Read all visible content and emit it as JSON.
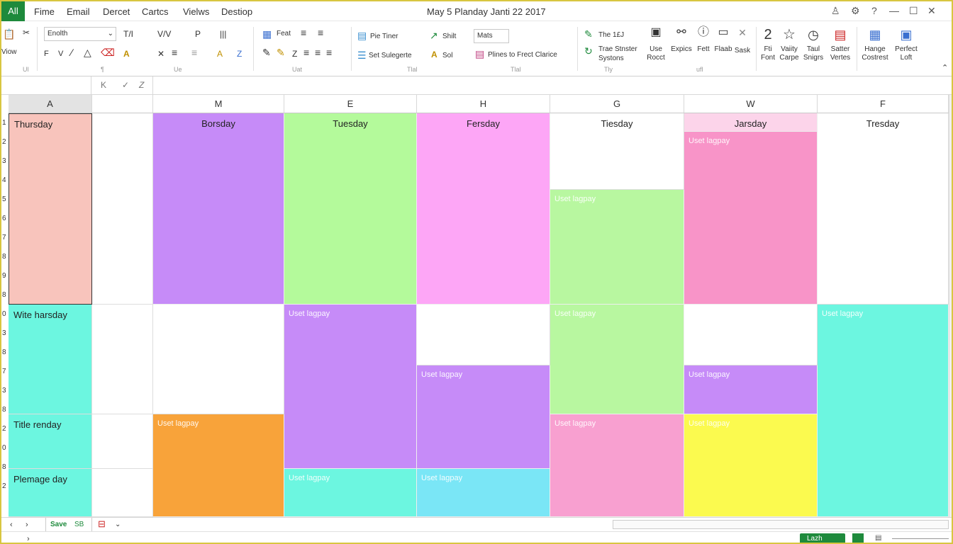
{
  "menubar": {
    "file_tab": "All",
    "items": [
      "Fime",
      "Email",
      "Dercet",
      "Cartcs",
      "Vielws",
      "Destiop"
    ],
    "title": "May 5 Planday  Janti 22 2017"
  },
  "ribbon": {
    "clipboard_label": "Viow",
    "font_name": "Enolth",
    "font_glyphs": [
      "T/I",
      "V/V",
      "P",
      "|||"
    ],
    "fmt_glyphs": [
      "F",
      "V",
      "Z",
      "A",
      "A",
      "Z"
    ],
    "group_labels": [
      "Ul",
      "¶",
      "Ue",
      "Uat",
      "Tlal",
      "Tly",
      "ufl"
    ],
    "feat_label": "Feat",
    "file_liner": "Pie Tiner",
    "set_categorte": "Set Sulegerte",
    "shift_label": "Shilt",
    "sol_label": "Sol",
    "mats_label": "Mats",
    "plines_label": "Plines to Frect Clarice",
    "the_label": "The 1£J",
    "trae_label": "Trae Stnster",
    "systons_label": "Systons",
    "big_buttons": [
      {
        "icon": "user",
        "l1": "Use",
        "l2": "Rocct"
      },
      {
        "icon": "link",
        "l1": "Expics",
        "l2": ""
      },
      {
        "icon": "info",
        "l1": "Fett",
        "l2": ""
      },
      {
        "icon": "window",
        "l1": "Flaab",
        "l2": ""
      },
      {
        "icon": "close",
        "l1": "Sask",
        "l2": ""
      }
    ],
    "right_buttons": [
      {
        "icon": "2",
        "l1": "Fti",
        "l2": "Font"
      },
      {
        "icon": "star",
        "l1": "Vaiity",
        "l2": "Carpe"
      },
      {
        "icon": "clock",
        "l1": "Taul",
        "l2": "Snigrs"
      },
      {
        "icon": "doc",
        "l1": "Satter",
        "l2": "Vertes"
      },
      {
        "icon": "grid",
        "l1": "Hange",
        "l2": "Costrest"
      },
      {
        "icon": "save",
        "l1": "Perfect",
        "l2": "Loft"
      }
    ]
  },
  "formula_bar": {
    "name_box": "",
    "cancel": "K",
    "enter": "✓",
    "fx": "Z",
    "value": ""
  },
  "columns": [
    "A",
    "",
    "M",
    "E",
    "H",
    "G",
    "W",
    "F"
  ],
  "day_headers": [
    "Thursday",
    "",
    "Borsday",
    "Tuesday",
    "Fersday",
    "Tiesday",
    "Jarsday",
    "Tresday"
  ],
  "row_numbers": [
    "1",
    "2",
    "3",
    "4",
    "5",
    "6",
    "7",
    "8",
    "9",
    "8",
    "0",
    "3",
    "8",
    "7",
    "3",
    "8",
    "2",
    "0",
    "8",
    "2"
  ],
  "row_labels": [
    "Wite harsday",
    "Title renday",
    "Plemage day"
  ],
  "event_label": "Uset lagpay",
  "colors": {
    "pink_light": "#f8c4bc",
    "purple": "#c68bf8",
    "green": "#b4fa9b",
    "magenta": "#fda6f6",
    "rose": "#f894c8",
    "turquoise": "#6cf6e0",
    "orange": "#f8a33a",
    "yellow": "#fbfa4f",
    "sky": "#7ae6f6",
    "lightgreen": "#b8f7a0",
    "pink": "#f8a0d0",
    "accent_green": "#1e8a3c"
  },
  "sheetbar": {
    "tab": "Save",
    "tab2": "SB"
  },
  "statusbar": {
    "badge": "Lazh"
  }
}
